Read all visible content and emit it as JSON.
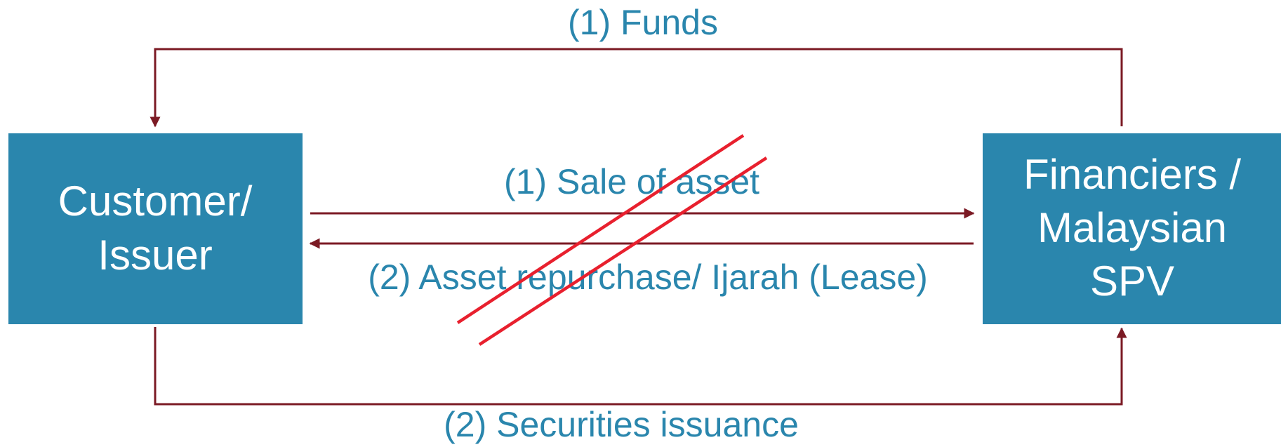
{
  "nodes": [
    {
      "lines": [
        "Customer/",
        "Issuer"
      ]
    },
    {
      "lines": [
        "Financiers /",
        "Malaysian",
        "SPV"
      ]
    }
  ],
  "edges": [
    {
      "label": "(1) Funds"
    },
    {
      "label": "(1) Sale of asset"
    },
    {
      "label": "(2) Asset repurchase/ Ijarah (Lease)"
    },
    {
      "label": "(2) Securities issuance"
    }
  ]
}
